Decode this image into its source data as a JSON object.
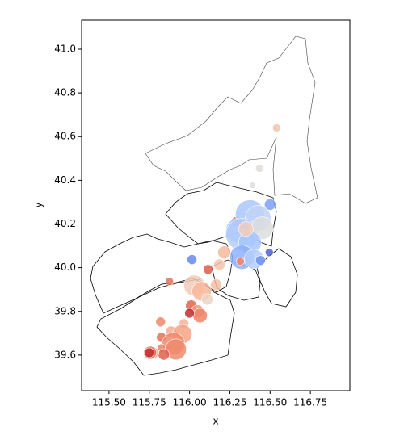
{
  "chart_data": {
    "type": "scatter",
    "xlabel": "x",
    "ylabel": "y",
    "xlim": [
      115.33,
      116.995
    ],
    "ylim": [
      39.437,
      41.133
    ],
    "xticks": [
      {
        "value": 115.5,
        "label": "115.50"
      },
      {
        "value": 115.75,
        "label": "115.75"
      },
      {
        "value": 116.0,
        "label": "116.00"
      },
      {
        "value": 116.25,
        "label": "116.25"
      },
      {
        "value": 116.5,
        "label": "116.50"
      },
      {
        "value": 116.75,
        "label": "116.75"
      }
    ],
    "yticks": [
      {
        "value": 39.6,
        "label": "39.6"
      },
      {
        "value": 39.8,
        "label": "39.8"
      },
      {
        "value": 40.0,
        "label": "40.0"
      },
      {
        "value": 40.2,
        "label": "40.2"
      },
      {
        "value": 40.4,
        "label": "40.4"
      },
      {
        "value": 40.6,
        "label": "40.6"
      },
      {
        "value": 40.8,
        "label": "40.8"
      },
      {
        "value": 41.0,
        "label": "41.0"
      }
    ],
    "series": [
      {
        "x": [
          116.54,
          116.435,
          116.39,
          116.5,
          116.29,
          116.375,
          116.425,
          116.3,
          116.325,
          116.45,
          116.375,
          116.35,
          116.325,
          116.4,
          116.44,
          116.495,
          116.315,
          116.015,
          116.115,
          116.185,
          116.215,
          116.03,
          116.075,
          116.165,
          115.875,
          116.11,
          116.01,
          116.05,
          116.065,
          116.0,
          115.82,
          115.965,
          115.885,
          115.955,
          115.825,
          115.9,
          115.915,
          115.825,
          115.84,
          115.775,
          115.755,
          115.75
        ],
        "values": [
          40.64,
          40.455,
          40.377,
          40.289,
          40.211,
          40.244,
          40.226,
          40.17,
          40.152,
          40.181,
          40.115,
          40.177,
          40.048,
          40.04,
          40.033,
          40.07,
          40.029,
          40.037,
          39.992,
          40.014,
          40.07,
          39.918,
          39.892,
          39.922,
          39.937,
          39.855,
          39.826,
          39.8,
          39.781,
          39.792,
          39.752,
          39.744,
          39.707,
          39.696,
          39.681,
          39.652,
          39.626,
          39.633,
          39.603,
          39.611,
          39.611,
          39.611
        ],
        "sizes": [
          25,
          25,
          16,
          49,
          36,
          324,
          256,
          225,
          400,
          196,
          196,
          81,
          225,
          144,
          36,
          25,
          25,
          36,
          36,
          49,
          64,
          169,
          144,
          49,
          25,
          49,
          49,
          64,
          81,
          36,
          36,
          36,
          49,
          144,
          36,
          196,
          169,
          25,
          49,
          49,
          64,
          36
        ],
        "colors": [
          "#f2c4ab",
          "#e0dcd9",
          "#dddddd",
          "#7b9ff9",
          "#d24b40",
          "#aac7fd",
          "#c0d4f5",
          "#9ebeff",
          "#b5cdfa",
          "#dcdddd",
          "#a7c5fe",
          "#f1cdba",
          "#8db0fe",
          "#b3cdfb",
          "#6f92f3",
          "#4a63d3",
          "#ee8468",
          "#6788ee",
          "#dc5d4a",
          "#f5c4ac",
          "#f7b89c",
          "#f2cbb7",
          "#f7b79b",
          "#f6bda2",
          "#e46e56",
          "#ecd3c5",
          "#e0654f",
          "#f39577",
          "#ee8468",
          "#c32e31",
          "#ef886b",
          "#f7b497",
          "#f7ad90",
          "#f6a385",
          "#e46e56",
          "#f08a6c",
          "#f08b6e",
          "#ee8468",
          "#dd5f4b",
          "#f7a889",
          "#e46e56",
          "#c32e31"
        ]
      }
    ]
  }
}
